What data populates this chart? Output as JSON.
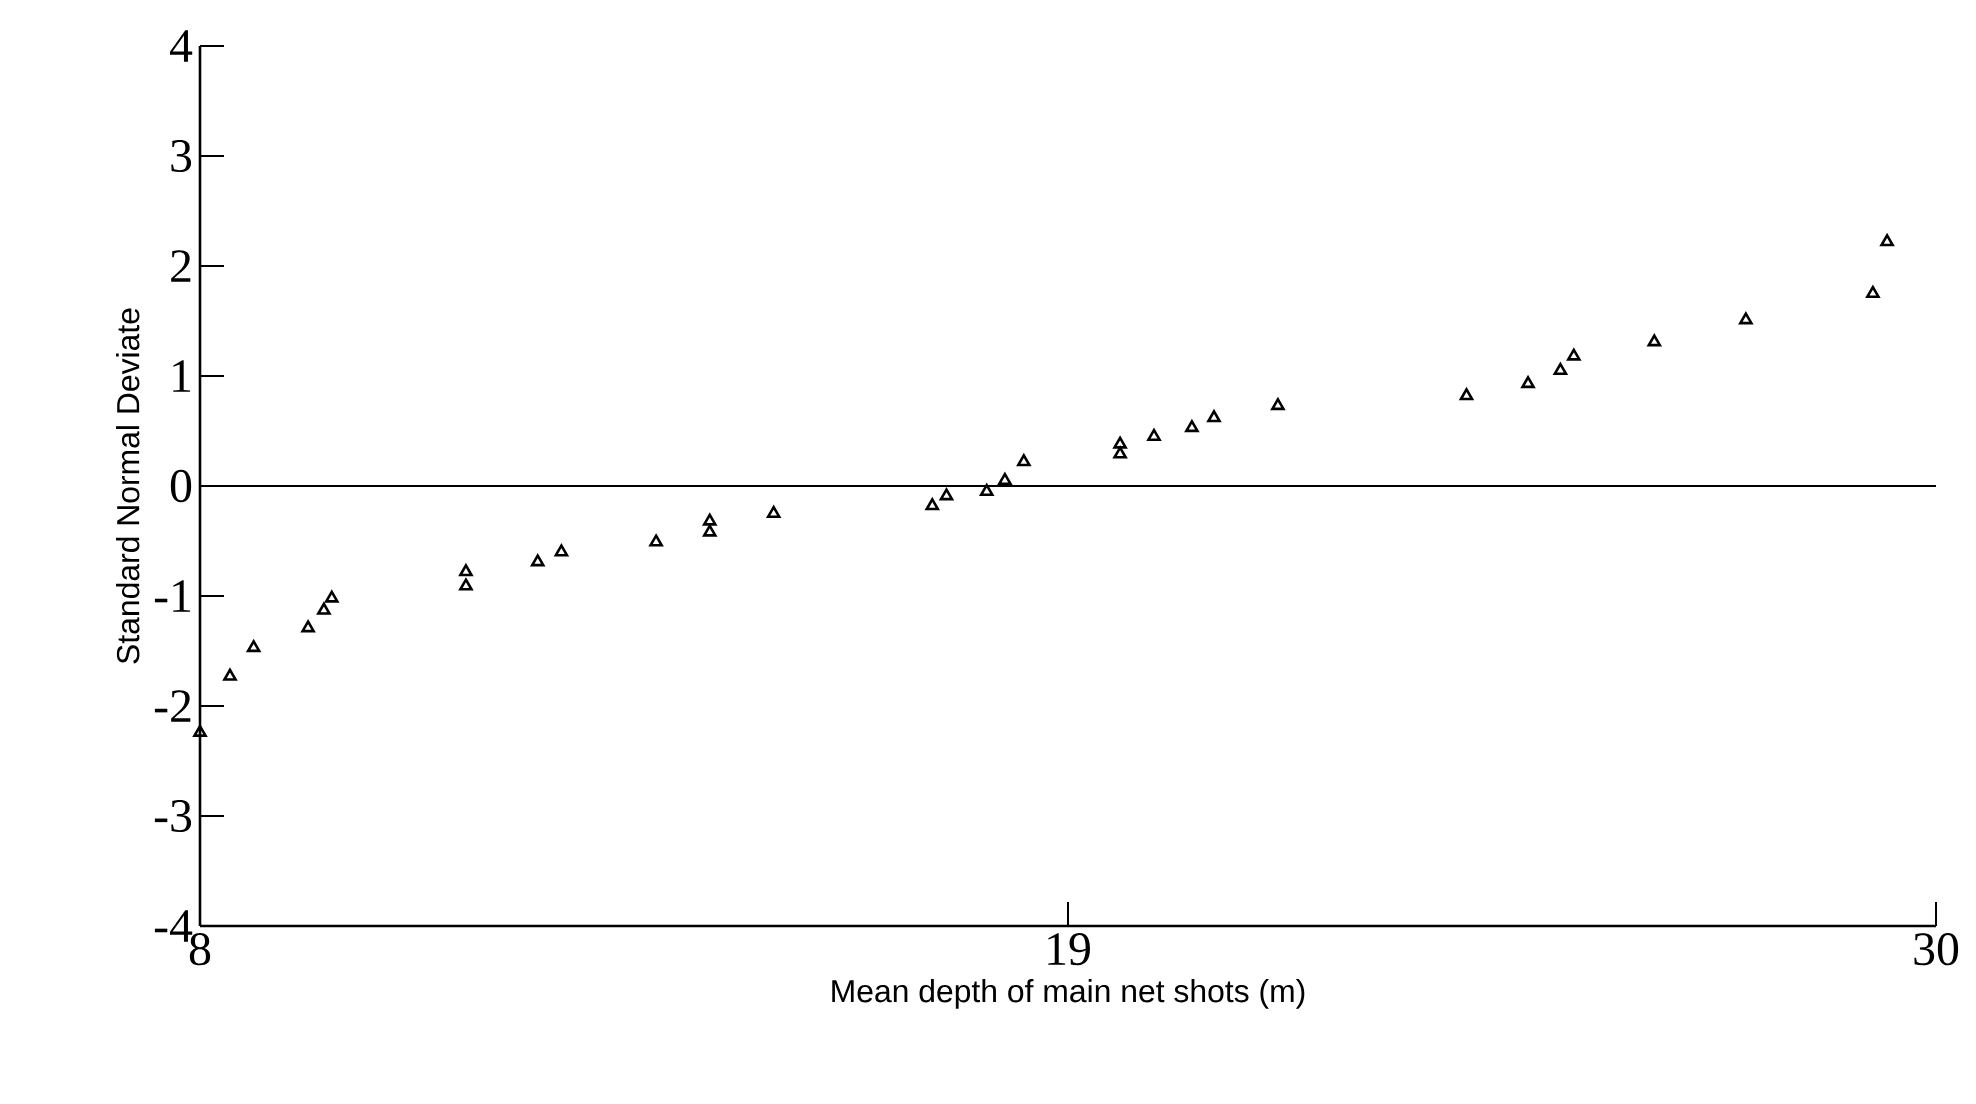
{
  "chart_data": {
    "type": "scatter",
    "xlabel": "Mean depth of main net shots (m)",
    "ylabel": "Standard Normal Deviate",
    "x": [
      8.0,
      8.38,
      8.68,
      9.37,
      9.57,
      9.67,
      11.37,
      11.37,
      12.28,
      12.58,
      13.78,
      14.46,
      14.46,
      15.27,
      17.28,
      17.46,
      17.97,
      18.2,
      18.44,
      19.66,
      19.66,
      20.09,
      20.57,
      20.85,
      21.66,
      24.05,
      24.83,
      25.24,
      25.41,
      26.43,
      27.59,
      29.2,
      29.38
    ],
    "values": [
      -2.24,
      -1.73,
      -1.47,
      -1.29,
      -1.13,
      -1.02,
      -0.91,
      -0.78,
      -0.69,
      -0.6,
      -0.51,
      -0.42,
      -0.32,
      -0.25,
      -0.18,
      -0.09,
      -0.05,
      0.05,
      0.22,
      0.29,
      0.38,
      0.45,
      0.53,
      0.62,
      0.73,
      0.82,
      0.93,
      1.05,
      1.18,
      1.31,
      1.51,
      1.75,
      2.22
    ],
    "color": "#000000",
    "marker": "triangle",
    "xlim": [
      8,
      30
    ],
    "xticks": [
      8,
      19,
      30
    ],
    "ylim": [
      -4,
      4
    ],
    "yticks": [
      -4,
      -3,
      -2,
      -1,
      0,
      1,
      2,
      3,
      4
    ],
    "ref_lines": [
      {
        "axis": "y",
        "value": 0,
        "color": "#000000"
      }
    ]
  }
}
